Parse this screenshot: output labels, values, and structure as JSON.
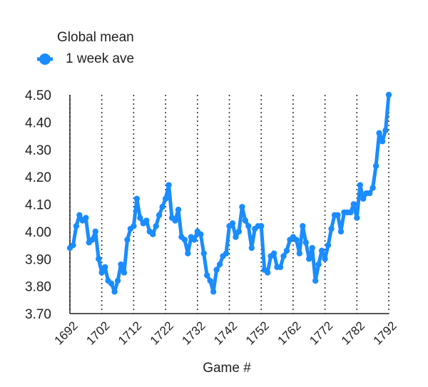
{
  "chart_data": {
    "type": "line",
    "title": "",
    "legend": {
      "title": "Global mean",
      "placement": "top-left"
    },
    "xlabel": "Game #",
    "ylabel": "",
    "xlim": [
      1692,
      1792
    ],
    "ylim": [
      3.7,
      4.5
    ],
    "x_ticks": [
      "1692",
      "1702",
      "1712",
      "1722",
      "1732",
      "1742",
      "1752",
      "1762",
      "1772",
      "1782",
      "1792"
    ],
    "y_ticks": [
      "3.70",
      "3.80",
      "3.90",
      "4.00",
      "4.10",
      "4.20",
      "4.30",
      "4.40",
      "4.50"
    ],
    "grid": {
      "vertical": "dotted",
      "horizontal": false
    },
    "colors": {
      "series": "#1a8cff",
      "axis": "#222222",
      "grid": "#333333"
    },
    "series": [
      {
        "name": "1 week ave",
        "x": [
          1692,
          1693,
          1694,
          1695,
          1696,
          1697,
          1698,
          1699,
          1700,
          1701,
          1702,
          1703,
          1704,
          1705,
          1706,
          1707,
          1708,
          1709,
          1710,
          1711,
          1712,
          1713,
          1714,
          1715,
          1716,
          1717,
          1718,
          1719,
          1720,
          1721,
          1722,
          1723,
          1724,
          1725,
          1726,
          1727,
          1728,
          1729,
          1730,
          1731,
          1732,
          1733,
          1734,
          1735,
          1736,
          1737,
          1738,
          1739,
          1740,
          1741,
          1742,
          1743,
          1744,
          1745,
          1746,
          1747,
          1748,
          1749,
          1750,
          1751,
          1752,
          1753,
          1754,
          1755,
          1756,
          1757,
          1758,
          1759,
          1760,
          1761,
          1762,
          1763,
          1764,
          1765,
          1766,
          1767,
          1768,
          1769,
          1770,
          1771,
          1772,
          1773,
          1774,
          1775,
          1776,
          1777,
          1778,
          1779,
          1780,
          1781,
          1782,
          1783,
          1784,
          1785,
          1786,
          1787,
          1788,
          1789,
          1790,
          1791,
          1792
        ],
        "values": [
          3.94,
          3.95,
          4.02,
          4.06,
          4.04,
          4.05,
          3.96,
          3.97,
          4.0,
          3.9,
          3.85,
          3.87,
          3.82,
          3.81,
          3.78,
          3.82,
          3.88,
          3.85,
          3.97,
          4.01,
          4.02,
          4.12,
          4.05,
          4.03,
          4.04,
          4.0,
          3.99,
          4.02,
          4.06,
          4.09,
          4.12,
          4.17,
          4.05,
          4.04,
          4.08,
          3.98,
          3.97,
          3.92,
          3.98,
          3.97,
          4.0,
          3.99,
          3.92,
          3.84,
          3.82,
          3.78,
          3.86,
          3.88,
          3.91,
          3.92,
          4.02,
          4.03,
          3.98,
          4.0,
          4.09,
          4.04,
          4.02,
          3.94,
          4.01,
          4.02,
          4.02,
          3.86,
          3.85,
          3.91,
          3.92,
          3.87,
          3.87,
          3.91,
          3.93,
          3.97,
          3.98,
          3.97,
          3.92,
          4.02,
          3.96,
          3.9,
          3.94,
          3.82,
          3.88,
          3.93,
          3.9,
          3.95,
          4.01,
          4.06,
          4.06,
          4.0,
          4.07,
          4.07,
          4.07,
          4.1,
          4.05,
          4.17,
          4.12,
          4.14,
          4.14,
          4.16,
          4.24,
          4.36,
          4.33,
          4.37,
          4.5
        ]
      }
    ]
  }
}
